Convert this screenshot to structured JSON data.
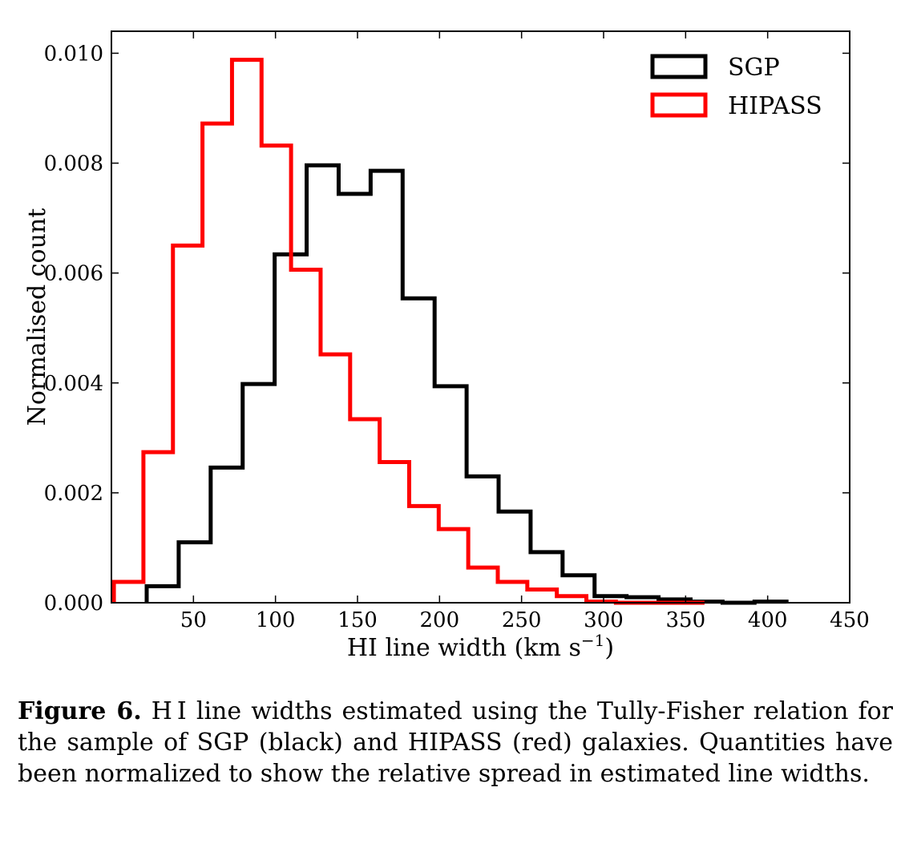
{
  "chart_data": {
    "type": "histogram",
    "xlabel": "HI line width (km s⁻¹)",
    "ylabel": "Normalised count",
    "xlim": [
      0,
      450
    ],
    "ylim": [
      0,
      0.0104
    ],
    "x_ticks": [
      50,
      100,
      150,
      200,
      250,
      300,
      350,
      400,
      450
    ],
    "y_ticks": [
      0.0,
      0.002,
      0.004,
      0.006,
      0.008,
      0.01
    ],
    "legend_position": "top-right",
    "grid": false,
    "series": [
      {
        "name": "SGP",
        "color": "#000000",
        "bin_edges": [
          21.5,
          41,
          60.5,
          80,
          99.5,
          119,
          138.5,
          158,
          177.5,
          197,
          216.5,
          236,
          255.5,
          275,
          294.5,
          314,
          333.5,
          353,
          372.5,
          392,
          411.5
        ],
        "values": [
          0.0003,
          0.0011,
          0.00246,
          0.00398,
          0.00634,
          0.00796,
          0.00744,
          0.00786,
          0.00554,
          0.00394,
          0.0023,
          0.00166,
          0.00092,
          0.0005,
          0.00012,
          0.0001,
          6e-05,
          2e-05,
          0.0,
          2e-05
        ]
      },
      {
        "name": "HIPASS",
        "color": "#ff0000",
        "bin_edges": [
          1.5,
          19.5,
          37.5,
          55.5,
          73.5,
          91.5,
          109.5,
          127.5,
          145.5,
          163.5,
          181.5,
          199.5,
          217.5,
          235.5,
          253.5,
          271.5,
          289.5,
          307.5,
          325.5,
          343.5,
          361.5
        ],
        "values": [
          0.00038,
          0.00274,
          0.0065,
          0.00872,
          0.00988,
          0.00832,
          0.00606,
          0.00452,
          0.00334,
          0.00256,
          0.00176,
          0.00134,
          0.00064,
          0.00038,
          0.00024,
          0.00012,
          2e-05,
          0.0,
          0.0,
          0.0
        ]
      }
    ]
  },
  "caption": {
    "label": "Figure 6.",
    "text": "H I line widths estimated using the Tully-Fisher relation for the sample of SGP (black) and HIPASS (red) galaxies. Quantities have been normalized to show the relative spread in estimated line widths."
  }
}
